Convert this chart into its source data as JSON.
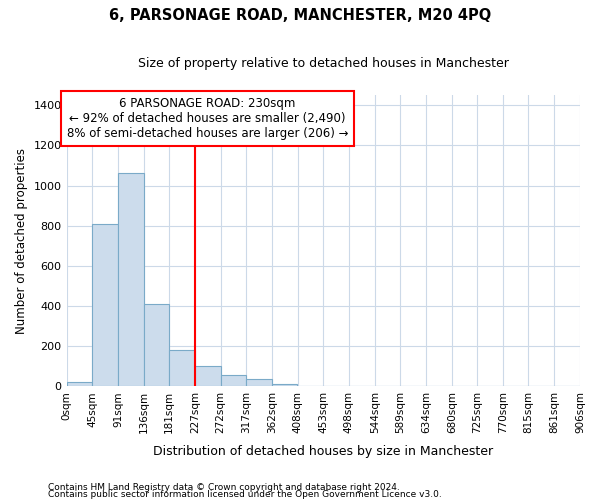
{
  "title": "6, PARSONAGE ROAD, MANCHESTER, M20 4PQ",
  "subtitle": "Size of property relative to detached houses in Manchester",
  "xlabel": "Distribution of detached houses by size in Manchester",
  "ylabel": "Number of detached properties",
  "bar_values": [
    20,
    810,
    1065,
    410,
    180,
    100,
    55,
    35,
    10,
    0,
    0,
    0,
    0,
    0,
    0,
    0,
    0,
    0,
    0,
    0
  ],
  "bar_color": "#ccdcec",
  "bar_edge_color": "#7aaac8",
  "property_line_x": 227,
  "property_line_color": "red",
  "annotation_line1": "6 PARSONAGE ROAD: 230sqm",
  "annotation_line2": "← 92% of detached houses are smaller (2,490)",
  "annotation_line3": "8% of semi-detached houses are larger (206) →",
  "annotation_box_color": "red",
  "ylim": [
    0,
    1450
  ],
  "yticks": [
    0,
    200,
    400,
    600,
    800,
    1000,
    1200,
    1400
  ],
  "all_labels": [
    "0sqm",
    "45sqm",
    "91sqm",
    "136sqm",
    "181sqm",
    "227sqm",
    "272sqm",
    "317sqm",
    "362sqm",
    "408sqm",
    "453sqm",
    "498sqm",
    "544sqm",
    "589sqm",
    "634sqm",
    "680sqm",
    "725sqm",
    "770sqm",
    "815sqm",
    "861sqm",
    "906sqm"
  ],
  "footnote1": "Contains HM Land Registry data © Crown copyright and database right 2024.",
  "footnote2": "Contains public sector information licensed under the Open Government Licence v3.0.",
  "background_color": "#ffffff",
  "grid_color": "#ccd9e8",
  "bin_width": 45,
  "x_positions": [
    0,
    45,
    91,
    136,
    181,
    227,
    272,
    317,
    362,
    408,
    453,
    498,
    544,
    589,
    634,
    680,
    725,
    770,
    815,
    861
  ],
  "tick_positions": [
    0,
    45,
    91,
    136,
    181,
    227,
    272,
    317,
    362,
    408,
    453,
    498,
    544,
    589,
    634,
    680,
    725,
    770,
    815,
    861,
    906
  ]
}
